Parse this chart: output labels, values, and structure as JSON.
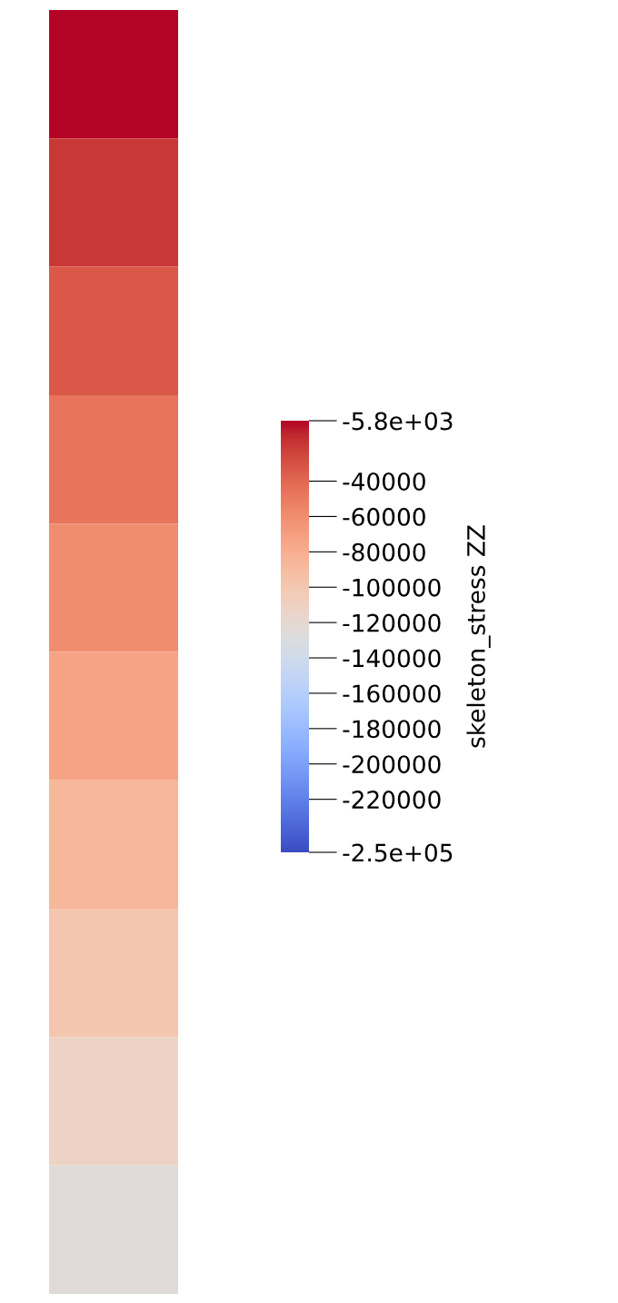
{
  "chart_data": {
    "type": "heatmap",
    "categories": [
      null
    ],
    "y_categories": [
      null,
      null,
      null,
      null,
      null,
      null,
      null,
      null,
      null,
      null
    ],
    "cells": [
      [
        -5800
      ],
      [
        -20000
      ],
      [
        -33000
      ],
      [
        -46000
      ],
      [
        -60000
      ],
      [
        -73000
      ],
      [
        -86000
      ],
      [
        -99000
      ],
      [
        -112000
      ],
      [
        -125000
      ]
    ],
    "clim": [
      -250000,
      -5800
    ],
    "cticks": [
      {
        "value": -5800,
        "label": "-5.8e+03"
      },
      -40000,
      -60000,
      -80000,
      -100000,
      -120000,
      -140000,
      -160000,
      -180000,
      -200000,
      -220000,
      {
        "value": -250000,
        "label": "-2.5e+05"
      }
    ],
    "clabel": "skeleton_stress ZZ",
    "tick_labels": false
  }
}
